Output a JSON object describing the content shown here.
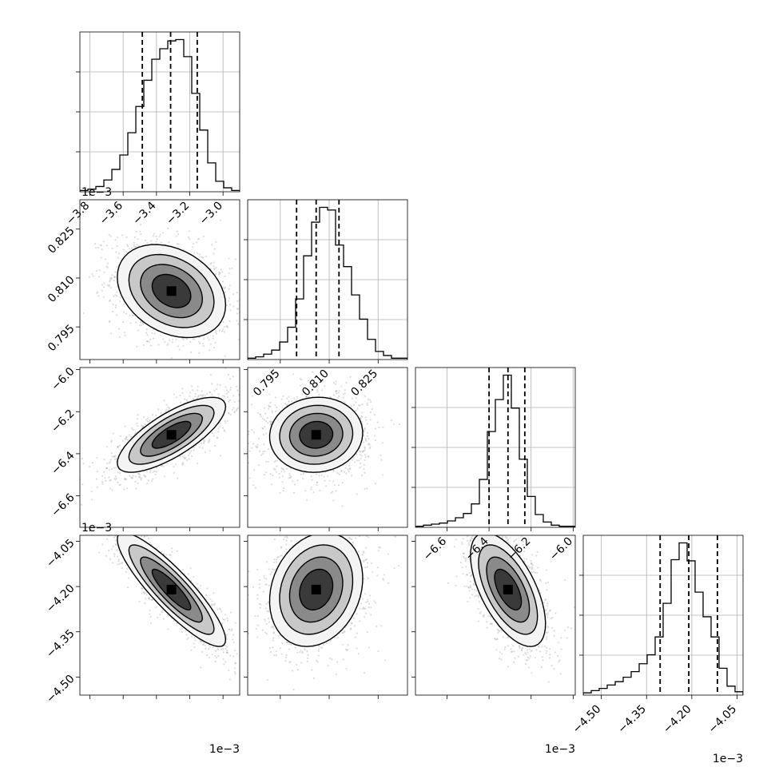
{
  "chart_data": {
    "type": "corner",
    "title": "",
    "parameters": [
      {
        "name": "",
        "range": [
          -3.86,
          -2.9
        ],
        "ticks": [
          -3.8,
          -3.6,
          -3.4,
          -3.2,
          -3.0
        ],
        "tick_labels": [
          "−3.8",
          "−3.6",
          "−3.4",
          "−3.2",
          "−3.0"
        ],
        "scale_label": "1e−3",
        "quantiles": [
          -3.485,
          -3.315,
          -3.155
        ],
        "hist": [
          1,
          2,
          4,
          9,
          17,
          28,
          45,
          65,
          85,
          101,
          109,
          115,
          116,
          103,
          75,
          47,
          22,
          8,
          3,
          1
        ],
        "mean": -3.31,
        "sd": 0.155
      },
      {
        "name": "",
        "range": [
          0.785,
          0.834
        ],
        "ticks": [
          0.795,
          0.81,
          0.825
        ],
        "tick_labels": [
          "0.795",
          "0.810",
          "0.825"
        ],
        "scale_label": "",
        "quantiles": [
          0.8,
          0.806,
          0.813
        ],
        "hist": [
          1,
          2,
          4,
          7,
          13,
          24,
          45,
          77,
          102,
          113,
          111,
          85,
          69,
          48,
          30,
          15,
          6,
          3,
          1,
          1
        ],
        "mean": 0.806,
        "sd": 0.0068
      },
      {
        "name": "",
        "range": [
          -6.75,
          -5.99
        ],
        "ticks": [
          -6.6,
          -6.4,
          -6.2,
          -6.0
        ],
        "tick_labels": [
          "−6.6",
          "−6.4",
          "−6.2",
          "−6.0"
        ],
        "scale_label": "1e−3",
        "quantiles": [
          -6.4,
          -6.31,
          -6.23
        ],
        "hist": [
          1,
          2,
          3,
          4,
          6,
          9,
          13,
          22,
          45,
          90,
          120,
          143,
          112,
          64,
          29,
          12,
          5,
          2,
          1,
          1
        ],
        "mean": -6.31,
        "sd": 0.085
      },
      {
        "name": "",
        "range": [
          -4.56,
          -4.03
        ],
        "ticks": [
          -4.5,
          -4.35,
          -4.2,
          -4.05
        ],
        "tick_labels": [
          "−4.50",
          "−4.35",
          "−4.20",
          "−4.05"
        ],
        "scale_label": "1e−3",
        "quantiles": [
          -4.305,
          -4.21,
          -4.115
        ],
        "hist": [
          2,
          4,
          6,
          9,
          12,
          16,
          21,
          28,
          36,
          52,
          82,
          121,
          136,
          120,
          92,
          70,
          52,
          24,
          8,
          3
        ],
        "mean": -4.21,
        "sd": 0.09
      }
    ],
    "correlations": [
      [
        1,
        -0.3,
        0.75,
        -0.88
      ],
      [
        -0.3,
        1,
        0.05,
        0.2
      ],
      [
        0.75,
        0.05,
        1,
        -0.6
      ],
      [
        -0.88,
        0.2,
        -0.6,
        1
      ]
    ],
    "contour_levels": [
      0.5,
      1.0,
      1.5,
      2.0
    ],
    "grid": true,
    "colors": {
      "line": "#000000",
      "grid": "#b0b0b0",
      "points": "#9a9a9a"
    }
  }
}
